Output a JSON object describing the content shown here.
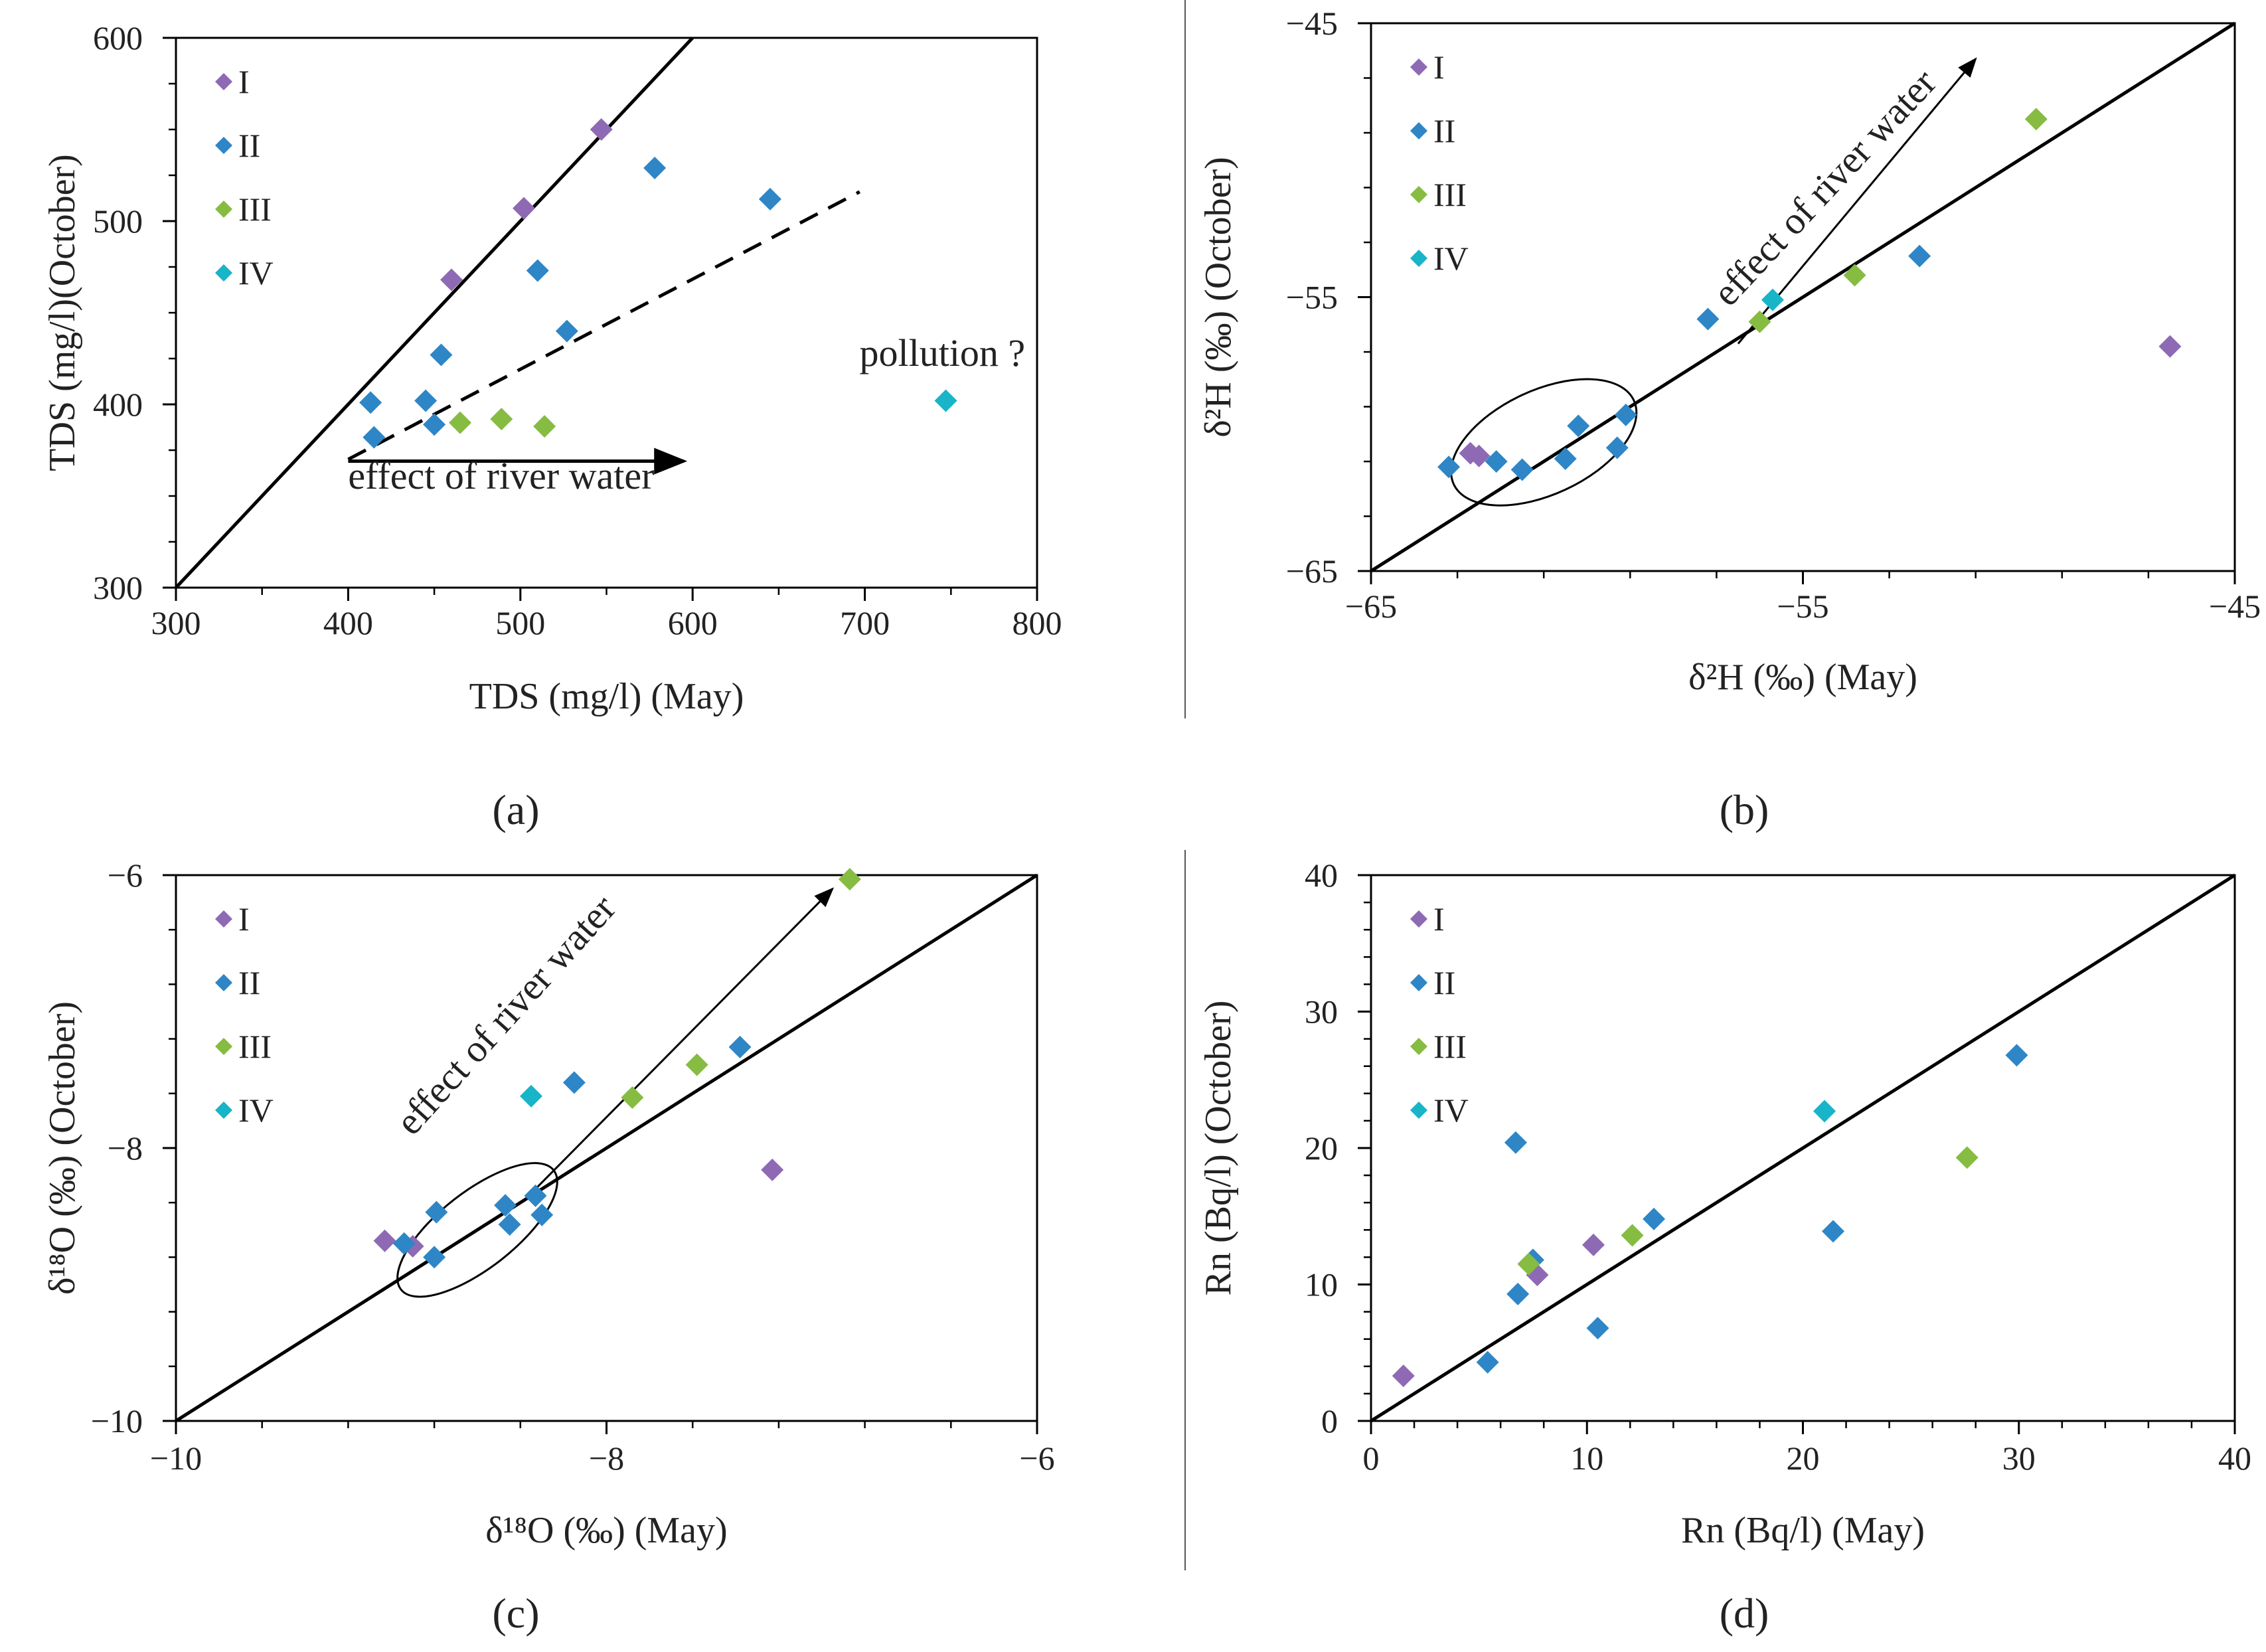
{
  "colors": {
    "I": "#8e6ab4",
    "II": "#2e86c6",
    "III": "#86bc42",
    "IV": "#18b4c8",
    "axis": "#000000",
    "text": "#222222"
  },
  "chart_data": [
    {
      "id": "a",
      "type": "scatter",
      "panel_label": "(a)",
      "xlabel": "TDS (mg/l) (May)",
      "ylabel": "TDS (mg/l)(October)",
      "xlim": [
        300,
        800
      ],
      "ylim": [
        300,
        600
      ],
      "xticks": [
        300,
        400,
        500,
        600,
        700,
        800
      ],
      "yticks": [
        300,
        400,
        500,
        600
      ],
      "xtick_labels": [
        "300",
        "400",
        "500",
        "600",
        "700",
        "800"
      ],
      "ytick_labels": [
        "300",
        "400",
        "500",
        "600"
      ],
      "minor_x": 50,
      "minor_y": 25,
      "grid": false,
      "legend_position": "top-left",
      "series": [
        {
          "name": "I",
          "x": [
            460,
            502,
            547
          ],
          "y": [
            468,
            507,
            550
          ]
        },
        {
          "name": "II",
          "x": [
            413,
            415,
            445,
            450,
            454,
            510,
            527,
            578,
            645
          ],
          "y": [
            401,
            382,
            402,
            389,
            427,
            473,
            440,
            529,
            512
          ]
        },
        {
          "name": "III",
          "x": [
            465,
            489,
            514
          ],
          "y": [
            390,
            392,
            388
          ]
        },
        {
          "name": "IV",
          "x": [
            747
          ],
          "y": [
            402
          ]
        }
      ],
      "lines": [
        {
          "style": "solid",
          "x": [
            300,
            600
          ],
          "y": [
            300,
            600
          ]
        },
        {
          "style": "dashed",
          "x": [
            400,
            697
          ],
          "y": [
            370,
            516
          ]
        }
      ],
      "arrows": [
        {
          "x": [
            400,
            595
          ],
          "y": [
            369,
            369
          ]
        }
      ],
      "annotations": [
        {
          "text": "effect of river water",
          "x": 400,
          "y": 354,
          "anchor": "start",
          "rotate": 0
        },
        {
          "text": "pollution ?",
          "x": 745,
          "y": 421,
          "anchor": "middle",
          "rotate": 0
        }
      ],
      "ellipse": null
    },
    {
      "id": "b",
      "type": "scatter",
      "panel_label": "(b)",
      "xlabel": "δ²H (‰) (May)",
      "ylabel": "δ²H (‰) (October)",
      "xlim": [
        -65,
        -45
      ],
      "ylim": [
        -65,
        -45
      ],
      "xticks": [
        -65,
        -55,
        -45
      ],
      "yticks": [
        -65,
        -55,
        -45
      ],
      "xtick_labels": [
        "−65",
        "−55",
        "−45"
      ],
      "ytick_labels": [
        "−65",
        "−55",
        "−45"
      ],
      "minor_x": 2,
      "minor_y": 2,
      "grid": false,
      "legend_position": "top-left",
      "series": [
        {
          "name": "I",
          "x": [
            -62.7,
            -62.5,
            -46.5
          ],
          "y": [
            -60.7,
            -60.8,
            -56.8
          ]
        },
        {
          "name": "II",
          "x": [
            -63.2,
            -62.1,
            -61.5,
            -60.5,
            -60.2,
            -59.3,
            -59.1,
            -57.2,
            -52.3
          ],
          "y": [
            -61.2,
            -61.0,
            -61.3,
            -60.9,
            -59.7,
            -60.5,
            -59.3,
            -55.8,
            -53.5
          ]
        },
        {
          "name": "III",
          "x": [
            -56.0,
            -53.8,
            -49.6
          ],
          "y": [
            -55.9,
            -54.2,
            -48.5
          ]
        },
        {
          "name": "IV",
          "x": [
            -55.7
          ],
          "y": [
            -55.1
          ]
        }
      ],
      "lines": [
        {
          "style": "solid",
          "x": [
            -65,
            -45
          ],
          "y": [
            -65,
            -45
          ]
        }
      ],
      "arrows": [
        {
          "x": [
            -56.5,
            -51.0
          ],
          "y": [
            -56.7,
            -46.3
          ]
        }
      ],
      "annotations": [
        {
          "text": "effect of river water",
          "x": -56.7,
          "y": -55.4,
          "anchor": "start",
          "rotate": -47
        }
      ],
      "ellipse": {
        "cx": -61.0,
        "cy": -60.3,
        "rx": 2.3,
        "ry": 1.9,
        "rotate": -25
      }
    },
    {
      "id": "c",
      "type": "scatter",
      "panel_label": "(c)",
      "xlabel": "δ¹⁸O (‰) (May)",
      "ylabel": "δ¹⁸O (‰) (October)",
      "xlim": [
        -10,
        -6
      ],
      "ylim": [
        -10,
        -6
      ],
      "xticks": [
        -10,
        -8,
        -6
      ],
      "yticks": [
        -10,
        -8,
        -6
      ],
      "xtick_labels": [
        "−10",
        "−8",
        "−6"
      ],
      "ytick_labels": [
        "−10",
        "−8",
        "−6"
      ],
      "minor_x": 0.4,
      "minor_y": 0.4,
      "grid": false,
      "legend_position": "top-left",
      "series": [
        {
          "name": "I",
          "x": [
            -9.03,
            -8.9,
            -7.23
          ],
          "y": [
            -8.68,
            -8.72,
            -8.16
          ]
        },
        {
          "name": "II",
          "x": [
            -8.94,
            -8.8,
            -8.79,
            -8.47,
            -8.45,
            -8.33,
            -8.3,
            -8.15,
            -7.38
          ],
          "y": [
            -8.7,
            -8.8,
            -8.47,
            -8.42,
            -8.56,
            -8.35,
            -8.49,
            -7.52,
            -7.26
          ]
        },
        {
          "name": "III",
          "x": [
            -7.88,
            -7.58,
            -6.87
          ],
          "y": [
            -7.63,
            -7.39,
            -6.03
          ]
        },
        {
          "name": "IV",
          "x": [
            -8.35
          ],
          "y": [
            -7.62
          ]
        }
      ],
      "lines": [
        {
          "style": "solid",
          "x": [
            -10,
            -6
          ],
          "y": [
            -10,
            -6
          ]
        }
      ],
      "arrows": [
        {
          "x": [
            -8.33,
            -6.95
          ],
          "y": [
            -8.3,
            -6.1
          ]
        }
      ],
      "annotations": [
        {
          "text": "effect of river water",
          "x": -8.9,
          "y": -7.92,
          "anchor": "start",
          "rotate": -48
        }
      ],
      "ellipse": {
        "cx": -8.6,
        "cy": -8.6,
        "rx": 0.45,
        "ry": 0.28,
        "rotate": -38
      }
    },
    {
      "id": "d",
      "type": "scatter",
      "panel_label": "(d)",
      "xlabel": "Rn (Bq/l) (May)",
      "ylabel": "Rn (Bq/l) (October)",
      "xlim": [
        0,
        40
      ],
      "ylim": [
        0,
        40
      ],
      "xticks": [
        0,
        10,
        20,
        30,
        40
      ],
      "yticks": [
        0,
        10,
        20,
        30,
        40
      ],
      "xtick_labels": [
        "0",
        "10",
        "20",
        "30",
        "40"
      ],
      "ytick_labels": [
        "0",
        "10",
        "20",
        "30",
        "40"
      ],
      "minor_x": 2,
      "minor_y": 2,
      "grid": false,
      "legend_position": "top-left",
      "series": [
        {
          "name": "I",
          "x": [
            1.5,
            7.7,
            10.3
          ],
          "y": [
            3.3,
            10.7,
            12.9
          ]
        },
        {
          "name": "II",
          "x": [
            5.4,
            6.7,
            6.8,
            7.5,
            10.5,
            13.1,
            21.4,
            29.9
          ],
          "y": [
            4.3,
            20.4,
            9.3,
            11.8,
            6.8,
            14.8,
            13.9,
            26.8
          ]
        },
        {
          "name": "III",
          "x": [
            7.3,
            12.1,
            27.6
          ],
          "y": [
            11.5,
            13.6,
            19.3
          ]
        },
        {
          "name": "IV",
          "x": [
            21.0
          ],
          "y": [
            22.7
          ]
        }
      ],
      "lines": [
        {
          "style": "solid",
          "x": [
            0,
            40
          ],
          "y": [
            0,
            40
          ]
        }
      ],
      "arrows": [],
      "annotations": [],
      "ellipse": null
    }
  ]
}
